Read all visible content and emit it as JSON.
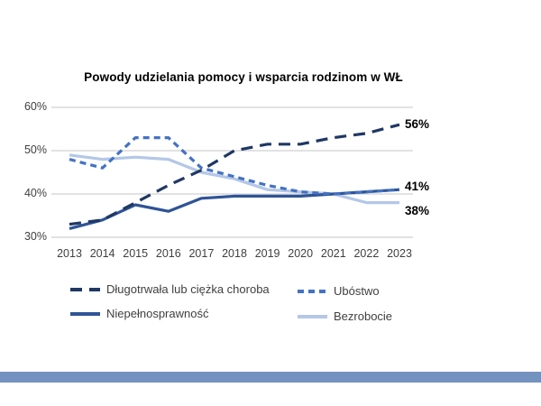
{
  "slide": {
    "background_color": "#ffffff",
    "bottom_bar_color": "#7392c0"
  },
  "chart_data": {
    "type": "line",
    "title": "Powody udzielania pomocy i wsparcia rodzinom w WŁ",
    "xlabel": "",
    "ylabel": "",
    "categories": [
      "2013",
      "2014",
      "2015",
      "2016",
      "2017",
      "2018",
      "2019",
      "2020",
      "2021",
      "2022",
      "2023"
    ],
    "ylim": [
      30,
      60
    ],
    "yticks": [
      60,
      50,
      40,
      30
    ],
    "ytick_suffix": "%",
    "grid": true,
    "legend_position": "bottom",
    "series": [
      {
        "id": "choroba",
        "name": "Długotrwała lub ciężka choroba",
        "style": "long-dash",
        "color": "#1f3864",
        "values": [
          33,
          34,
          38,
          42,
          45.5,
          50,
          51.5,
          51.5,
          53,
          54,
          56
        ],
        "end_label": "56%"
      },
      {
        "id": "ubostwo",
        "name": "Ubóstwo",
        "style": "short-dash",
        "color": "#4472c4",
        "values": [
          48,
          46,
          53,
          53,
          46,
          44,
          42,
          40.5,
          40,
          40.5,
          41
        ],
        "end_label": "41%"
      },
      {
        "id": "niepelnosprawnosc",
        "name": "Niepełnosprawność",
        "style": "solid",
        "color": "#2f5496",
        "values": [
          32,
          34,
          37.5,
          36,
          39,
          39.5,
          39.5,
          39.5,
          40,
          40.5,
          41
        ]
      },
      {
        "id": "bezrobocie",
        "name": "Bezrobocie",
        "style": "solid",
        "color": "#b4c7e7",
        "values": [
          49,
          48,
          48.5,
          48,
          45,
          43.5,
          41,
          40.5,
          40,
          38,
          38
        ],
        "end_label": "38%"
      }
    ]
  }
}
